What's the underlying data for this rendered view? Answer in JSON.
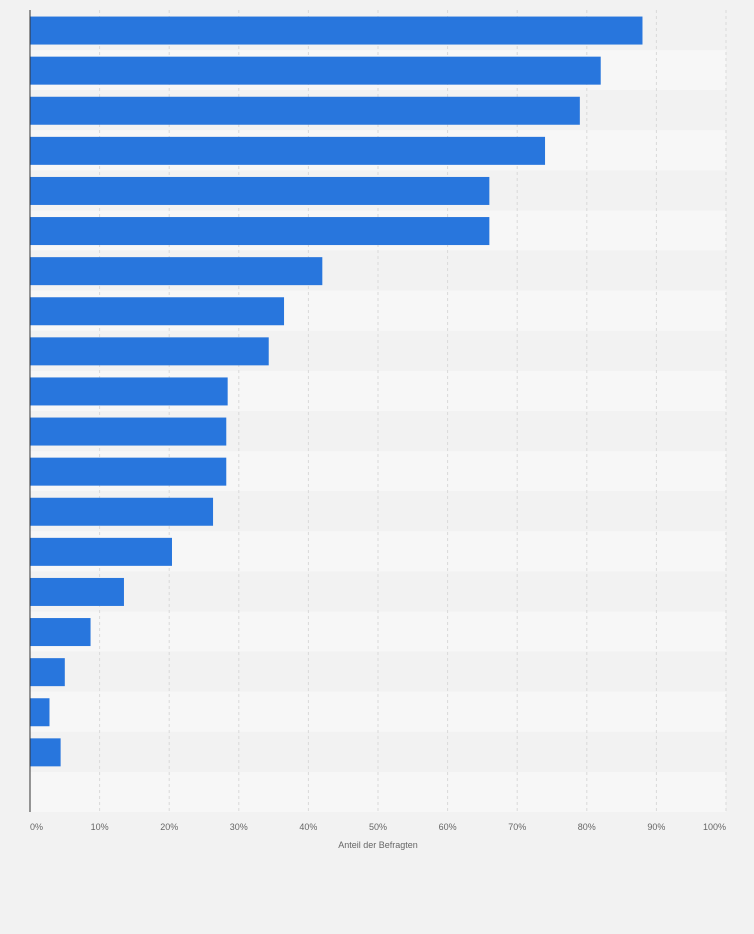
{
  "chart_data": {
    "type": "bar",
    "orientation": "horizontal",
    "title": "",
    "categories": [
      "",
      "",
      "",
      "",
      "",
      "",
      "",
      "",
      "",
      "",
      "",
      "",
      "",
      "",
      "",
      "",
      "",
      "",
      ""
    ],
    "values": [
      88,
      82,
      79,
      74,
      66,
      66,
      42,
      36.5,
      34.3,
      28.4,
      28.2,
      28.2,
      26.3,
      20.4,
      13.5,
      8.7,
      5,
      2.8,
      4.4
    ],
    "xlabel": "Anteil der Befragten",
    "ylabel": "",
    "xlim": [
      0,
      100
    ],
    "x_ticks": [
      "0%",
      "10%",
      "20%",
      "30%",
      "40%",
      "50%",
      "60%",
      "70%",
      "80%",
      "90%",
      "100%"
    ],
    "grid": true,
    "legend": "none",
    "colors": {
      "bar": "#2876dd",
      "background": "#f2f2f2",
      "band_light": "#f7f7f7",
      "band_dark": "#f2f2f2",
      "grid": "#d9d9d9",
      "axis": "#333333",
      "tick_text": "#666666"
    }
  }
}
